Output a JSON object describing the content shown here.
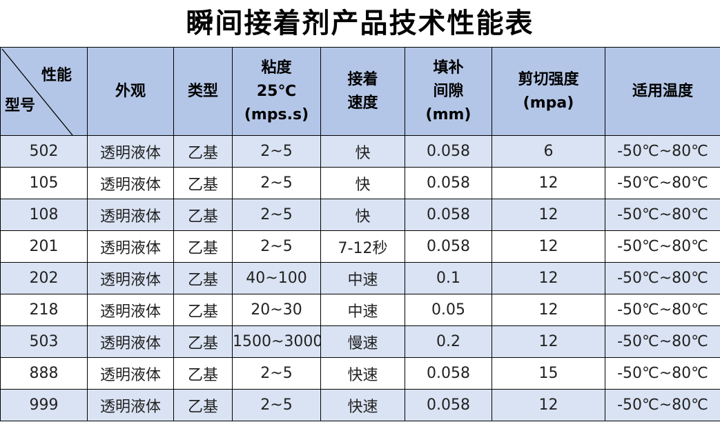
{
  "title": "瞬间接着剂产品技术性能表",
  "header": {
    "corner_top": "性能",
    "corner_bottom": "型号",
    "columns": [
      "外观",
      "类型",
      "粘度\n25℃\n(mps.s)",
      "接着\n速度",
      "填补\n间隙\n(mm)",
      "剪切强度\n(mpa)",
      "适用温度"
    ]
  },
  "rows": [
    [
      "502",
      "透明液体",
      "乙基",
      "2~5",
      "快",
      "0.058",
      "6",
      "-50℃~80℃"
    ],
    [
      "105",
      "透明液体",
      "乙基",
      "2~5",
      "快",
      "0.058",
      "12",
      "-50℃~80℃"
    ],
    [
      "108",
      "透明液体",
      "乙基",
      "2~5",
      "快",
      "0.058",
      "12",
      "-50℃~80℃"
    ],
    [
      "201",
      "透明液体",
      "乙基",
      "2~5",
      "7-12秒",
      "0.058",
      "12",
      "-50℃~80℃"
    ],
    [
      "202",
      "透明液体",
      "乙基",
      "40~100",
      "中速",
      "0.1",
      "12",
      "-50℃~80℃"
    ],
    [
      "218",
      "透明液体",
      "乙基",
      "20~30",
      "中速",
      "0.05",
      "12",
      "-50℃~80℃"
    ],
    [
      "503",
      "透明液体",
      "乙基",
      "1500~3000",
      "慢速",
      "0.2",
      "12",
      "-50℃~80℃"
    ],
    [
      "888",
      "透明液体",
      "乙基",
      "2~5",
      "快速",
      "0.058",
      "15",
      "-50℃~80℃"
    ],
    [
      "999",
      "透明液体",
      "乙基",
      "2~5",
      "快速",
      "0.058",
      "12",
      "-50℃~80℃"
    ]
  ],
  "colors": {
    "header_bg": "#b4c6e7",
    "alt_row_bg": "#dae3f3"
  }
}
